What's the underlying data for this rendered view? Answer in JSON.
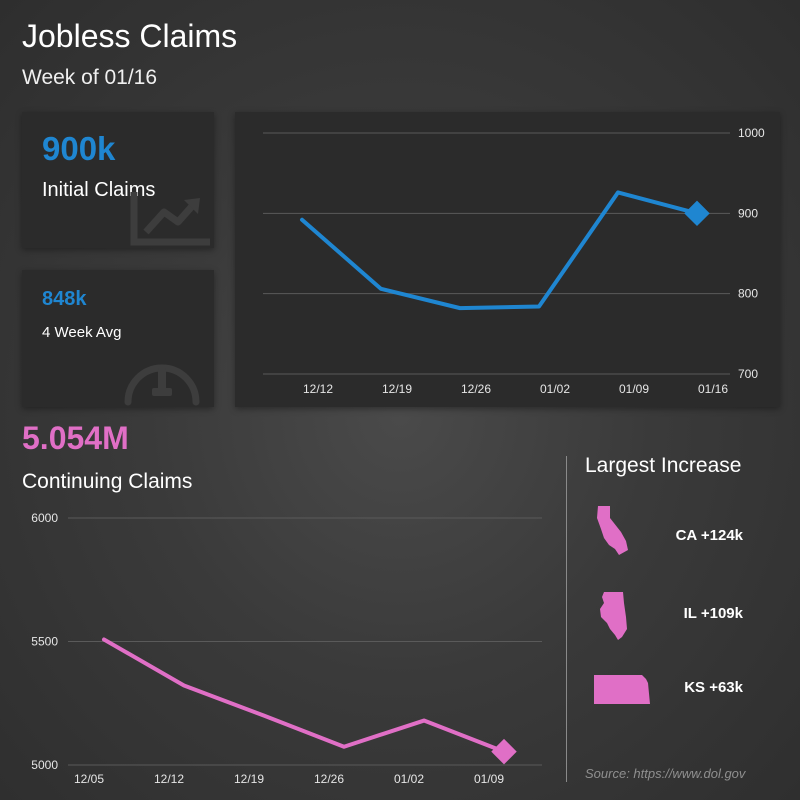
{
  "header": {
    "title": "Jobless Claims",
    "subtitle": "Week of 01/16"
  },
  "kpis": {
    "initial": {
      "value": "900k",
      "label": "Initial Claims",
      "icon": "trend-chart-icon"
    },
    "average": {
      "value": "848k",
      "label": "4 Week Avg",
      "icon": "gauge-icon"
    }
  },
  "continuing": {
    "value": "5.054M",
    "label": "Continuing Claims"
  },
  "largest_increase": {
    "title": "Largest Increase",
    "states": [
      {
        "label": "CA +124k",
        "icon": "california-state-icon"
      },
      {
        "label": "IL +109k",
        "icon": "illinois-state-icon"
      },
      {
        "label": "KS +63k",
        "icon": "kansas-state-icon"
      }
    ]
  },
  "source": "Source: https://www.dol.gov",
  "colors": {
    "initial": "#1f86d1",
    "continuing": "#e06fc6"
  },
  "chart_data": [
    {
      "type": "line",
      "x": [
        "12/12",
        "12/19",
        "12/26",
        "01/02",
        "01/09",
        "01/16"
      ],
      "series": [
        {
          "values": [
            892,
            806,
            782,
            784,
            926,
            900
          ]
        }
      ],
      "ylim": [
        700,
        1000
      ],
      "yticks": [
        1000,
        900,
        800,
        700
      ],
      "y_axis": "right",
      "grid": true,
      "last_point_marker": "diamond"
    },
    {
      "type": "line",
      "x": [
        "12/05",
        "12/12",
        "12/19",
        "12/26",
        "01/02",
        "01/09"
      ],
      "series": [
        {
          "values": [
            5508,
            5322,
            5200,
            5074,
            5180,
            5054
          ]
        }
      ],
      "ylim": [
        5000,
        6000
      ],
      "yticks": [
        6000,
        5500,
        5000
      ],
      "y_axis": "left",
      "grid": true,
      "last_point_marker": "diamond"
    }
  ]
}
